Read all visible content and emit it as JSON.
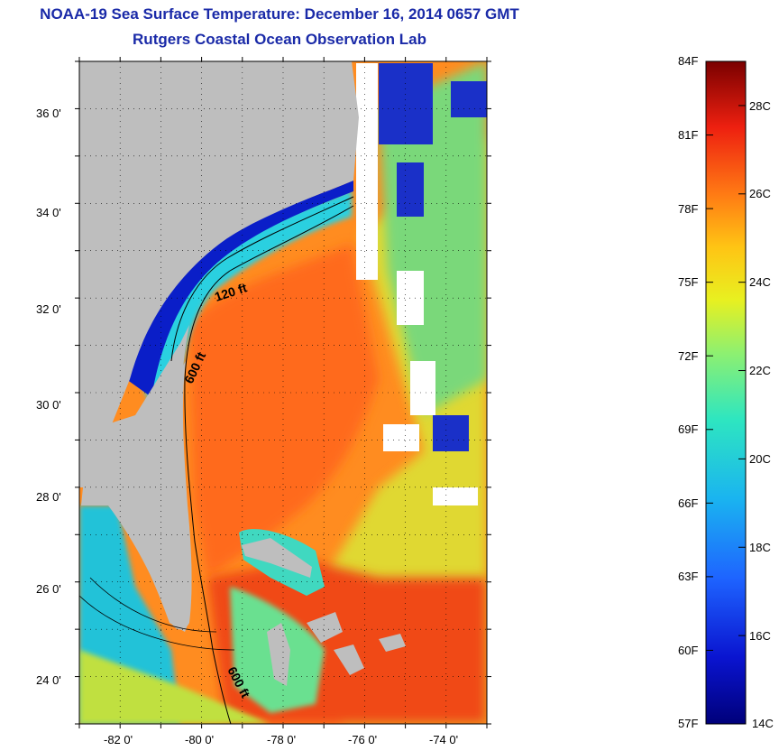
{
  "title": {
    "line1": "NOAA-19 Sea Surface Temperature:  December 16, 2014 0657 GMT",
    "line2": "Rutgers Coastal Ocean Observation Lab"
  },
  "map": {
    "lat_range": [
      23,
      37
    ],
    "lon_range": [
      -83,
      -73
    ],
    "lat_ticks": [
      "24 0'",
      "26 0'",
      "28 0'",
      "30 0'",
      "32 0'",
      "34 0'",
      "36 0'"
    ],
    "lon_ticks": [
      "-82 0'",
      "-80 0'",
      "-78 0'",
      "-76 0'",
      "-74 0'"
    ],
    "contours": [
      {
        "label": "120 ft"
      },
      {
        "label": "600 ft"
      },
      {
        "label": "600 ft"
      }
    ],
    "colors": {
      "land": "#bebebe",
      "clouds": "#ffffff",
      "cold_coastal": "#0a1ec8",
      "gulf_stream": "#ff6a1a"
    }
  },
  "colorbar": {
    "fahrenheit_labels": [
      "84F",
      "81F",
      "78F",
      "75F",
      "72F",
      "69F",
      "66F",
      "63F",
      "60F",
      "57F"
    ],
    "celsius_labels": [
      "28C",
      "26C",
      "24C",
      "22C",
      "20C",
      "18C",
      "16C",
      "14C"
    ],
    "range_f": [
      57,
      84
    ],
    "range_c": [
      14,
      29
    ]
  }
}
